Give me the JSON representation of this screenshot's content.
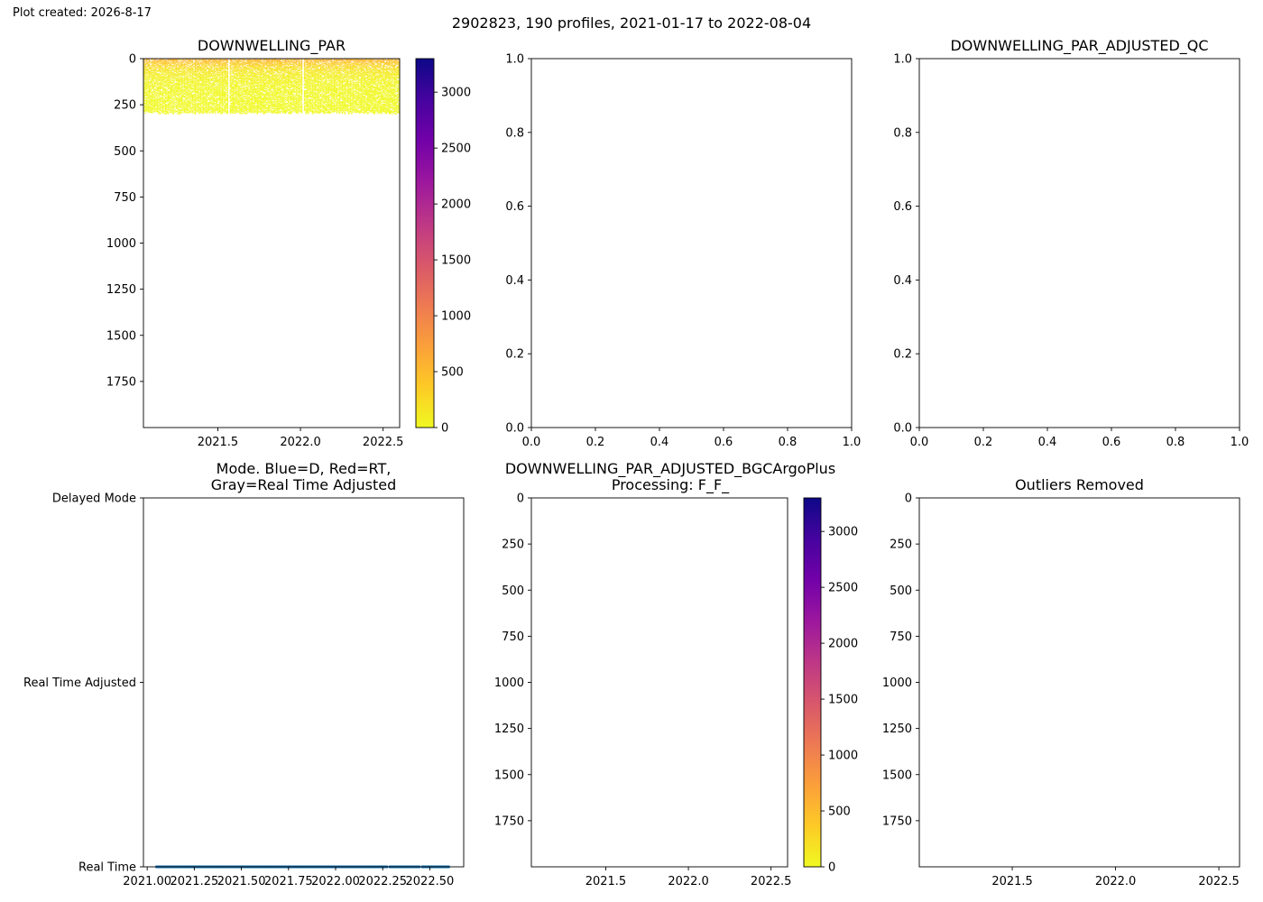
{
  "header": {
    "created": "Plot created: 2026-8-17",
    "suptitle": "2902823, 190 profiles, 2021-01-17 to 2022-08-04"
  },
  "colormap": {
    "name": "plasma_r",
    "stops": [
      "#f0f921",
      "#fdca26",
      "#fb9f3a",
      "#ed7953",
      "#d8576b",
      "#bd3786",
      "#9c179e",
      "#7201a8",
      "#46039f",
      "#0d0887"
    ]
  },
  "chart_data": [
    {
      "id": "downwelling-par",
      "type": "heatmap",
      "title": "DOWNWELLING_PAR",
      "xlim": [
        2021.05,
        2022.6
      ],
      "ylim": [
        2000,
        0
      ],
      "xticks": [
        2021.5,
        2022.0,
        2022.5
      ],
      "xtick_labels": [
        "2021.5",
        "2022.0",
        "2022.5"
      ],
      "yticks": [
        0,
        250,
        500,
        750,
        1000,
        1250,
        1500,
        1750
      ],
      "ytick_labels": [
        "0",
        "250",
        "500",
        "750",
        "1000",
        "1250",
        "1500",
        "1750"
      ],
      "data_extent": {
        "x": [
          2021.05,
          2022.6
        ],
        "depth": [
          0,
          300
        ]
      },
      "surface_max_value": 700,
      "colorbar": {
        "range": [
          0,
          3300
        ],
        "ticks": [
          0,
          500,
          1000,
          1500,
          2000,
          2500,
          3000
        ],
        "tick_labels": [
          "0",
          "500",
          "1000",
          "1500",
          "2000",
          "2500",
          "3000"
        ]
      }
    },
    {
      "id": "empty-middle-top",
      "type": "scatter",
      "title": "",
      "xlim": [
        0,
        1
      ],
      "ylim": [
        0,
        1
      ],
      "xticks": [
        0,
        0.2,
        0.4,
        0.6,
        0.8,
        1.0
      ],
      "xtick_labels": [
        "0.0",
        "0.2",
        "0.4",
        "0.6",
        "0.8",
        "1.0"
      ],
      "yticks": [
        0,
        0.2,
        0.4,
        0.6,
        0.8,
        1.0
      ],
      "ytick_labels": [
        "0.0",
        "0.2",
        "0.4",
        "0.6",
        "0.8",
        "1.0"
      ]
    },
    {
      "id": "downwelling-par-adjusted-qc",
      "type": "scatter",
      "title": "DOWNWELLING_PAR_ADJUSTED_QC",
      "xlim": [
        0,
        1
      ],
      "ylim": [
        0,
        1
      ],
      "xticks": [
        0,
        0.2,
        0.4,
        0.6,
        0.8,
        1.0
      ],
      "xtick_labels": [
        "0.0",
        "0.2",
        "0.4",
        "0.6",
        "0.8",
        "1.0"
      ],
      "yticks": [
        0,
        0.2,
        0.4,
        0.6,
        0.8,
        1.0
      ],
      "ytick_labels": [
        "0.0",
        "0.2",
        "0.4",
        "0.6",
        "0.8",
        "1.0"
      ]
    },
    {
      "id": "mode",
      "type": "scatter",
      "title": "Mode. Blue=D, Red=RT,\nGray=Real Time Adjusted",
      "xlim": [
        2020.98,
        2022.68
      ],
      "ylim": [
        0,
        2
      ],
      "xticks": [
        2021.0,
        2021.25,
        2021.5,
        2021.75,
        2022.0,
        2022.25,
        2022.5
      ],
      "xtick_labels": [
        "2021.00",
        "2021.25",
        "2021.50",
        "2021.75",
        "2022.00",
        "2022.25",
        "2022.50"
      ],
      "yticks": [
        0,
        1,
        2
      ],
      "ytick_labels": [
        "Real Time",
        "Real Time Adjusted",
        "Delayed Mode"
      ],
      "series": [
        {
          "mode_value": 0,
          "x_start": 2021.05,
          "x_end": 2022.6,
          "count": 190,
          "color": "#1f77b4"
        }
      ]
    },
    {
      "id": "downwelling-par-adjusted-bgcargoplus",
      "type": "heatmap",
      "title": "DOWNWELLING_PAR_ADJUSTED_BGCArgoPlus\nProcessing: F_F_",
      "xlim": [
        2021.05,
        2022.6
      ],
      "ylim": [
        2000,
        0
      ],
      "xticks": [
        2021.5,
        2022.0,
        2022.5
      ],
      "xtick_labels": [
        "2021.5",
        "2022.0",
        "2022.5"
      ],
      "yticks": [
        0,
        250,
        500,
        750,
        1000,
        1250,
        1500,
        1750
      ],
      "ytick_labels": [
        "0",
        "250",
        "500",
        "750",
        "1000",
        "1250",
        "1500",
        "1750"
      ],
      "colorbar": {
        "range": [
          0,
          3300
        ],
        "ticks": [
          0,
          500,
          1000,
          1500,
          2000,
          2500,
          3000
        ],
        "tick_labels": [
          "0",
          "500",
          "1000",
          "1500",
          "2000",
          "2500",
          "3000"
        ]
      }
    },
    {
      "id": "outliers-removed",
      "type": "heatmap",
      "title": "Outliers Removed",
      "xlim": [
        2021.05,
        2022.6
      ],
      "ylim": [
        2000,
        0
      ],
      "xticks": [
        2021.5,
        2022.0,
        2022.5
      ],
      "xtick_labels": [
        "2021.5",
        "2022.0",
        "2022.5"
      ],
      "yticks": [
        0,
        250,
        500,
        750,
        1000,
        1250,
        1500,
        1750
      ],
      "ytick_labels": [
        "0",
        "250",
        "500",
        "750",
        "1000",
        "1250",
        "1500",
        "1750"
      ]
    }
  ]
}
